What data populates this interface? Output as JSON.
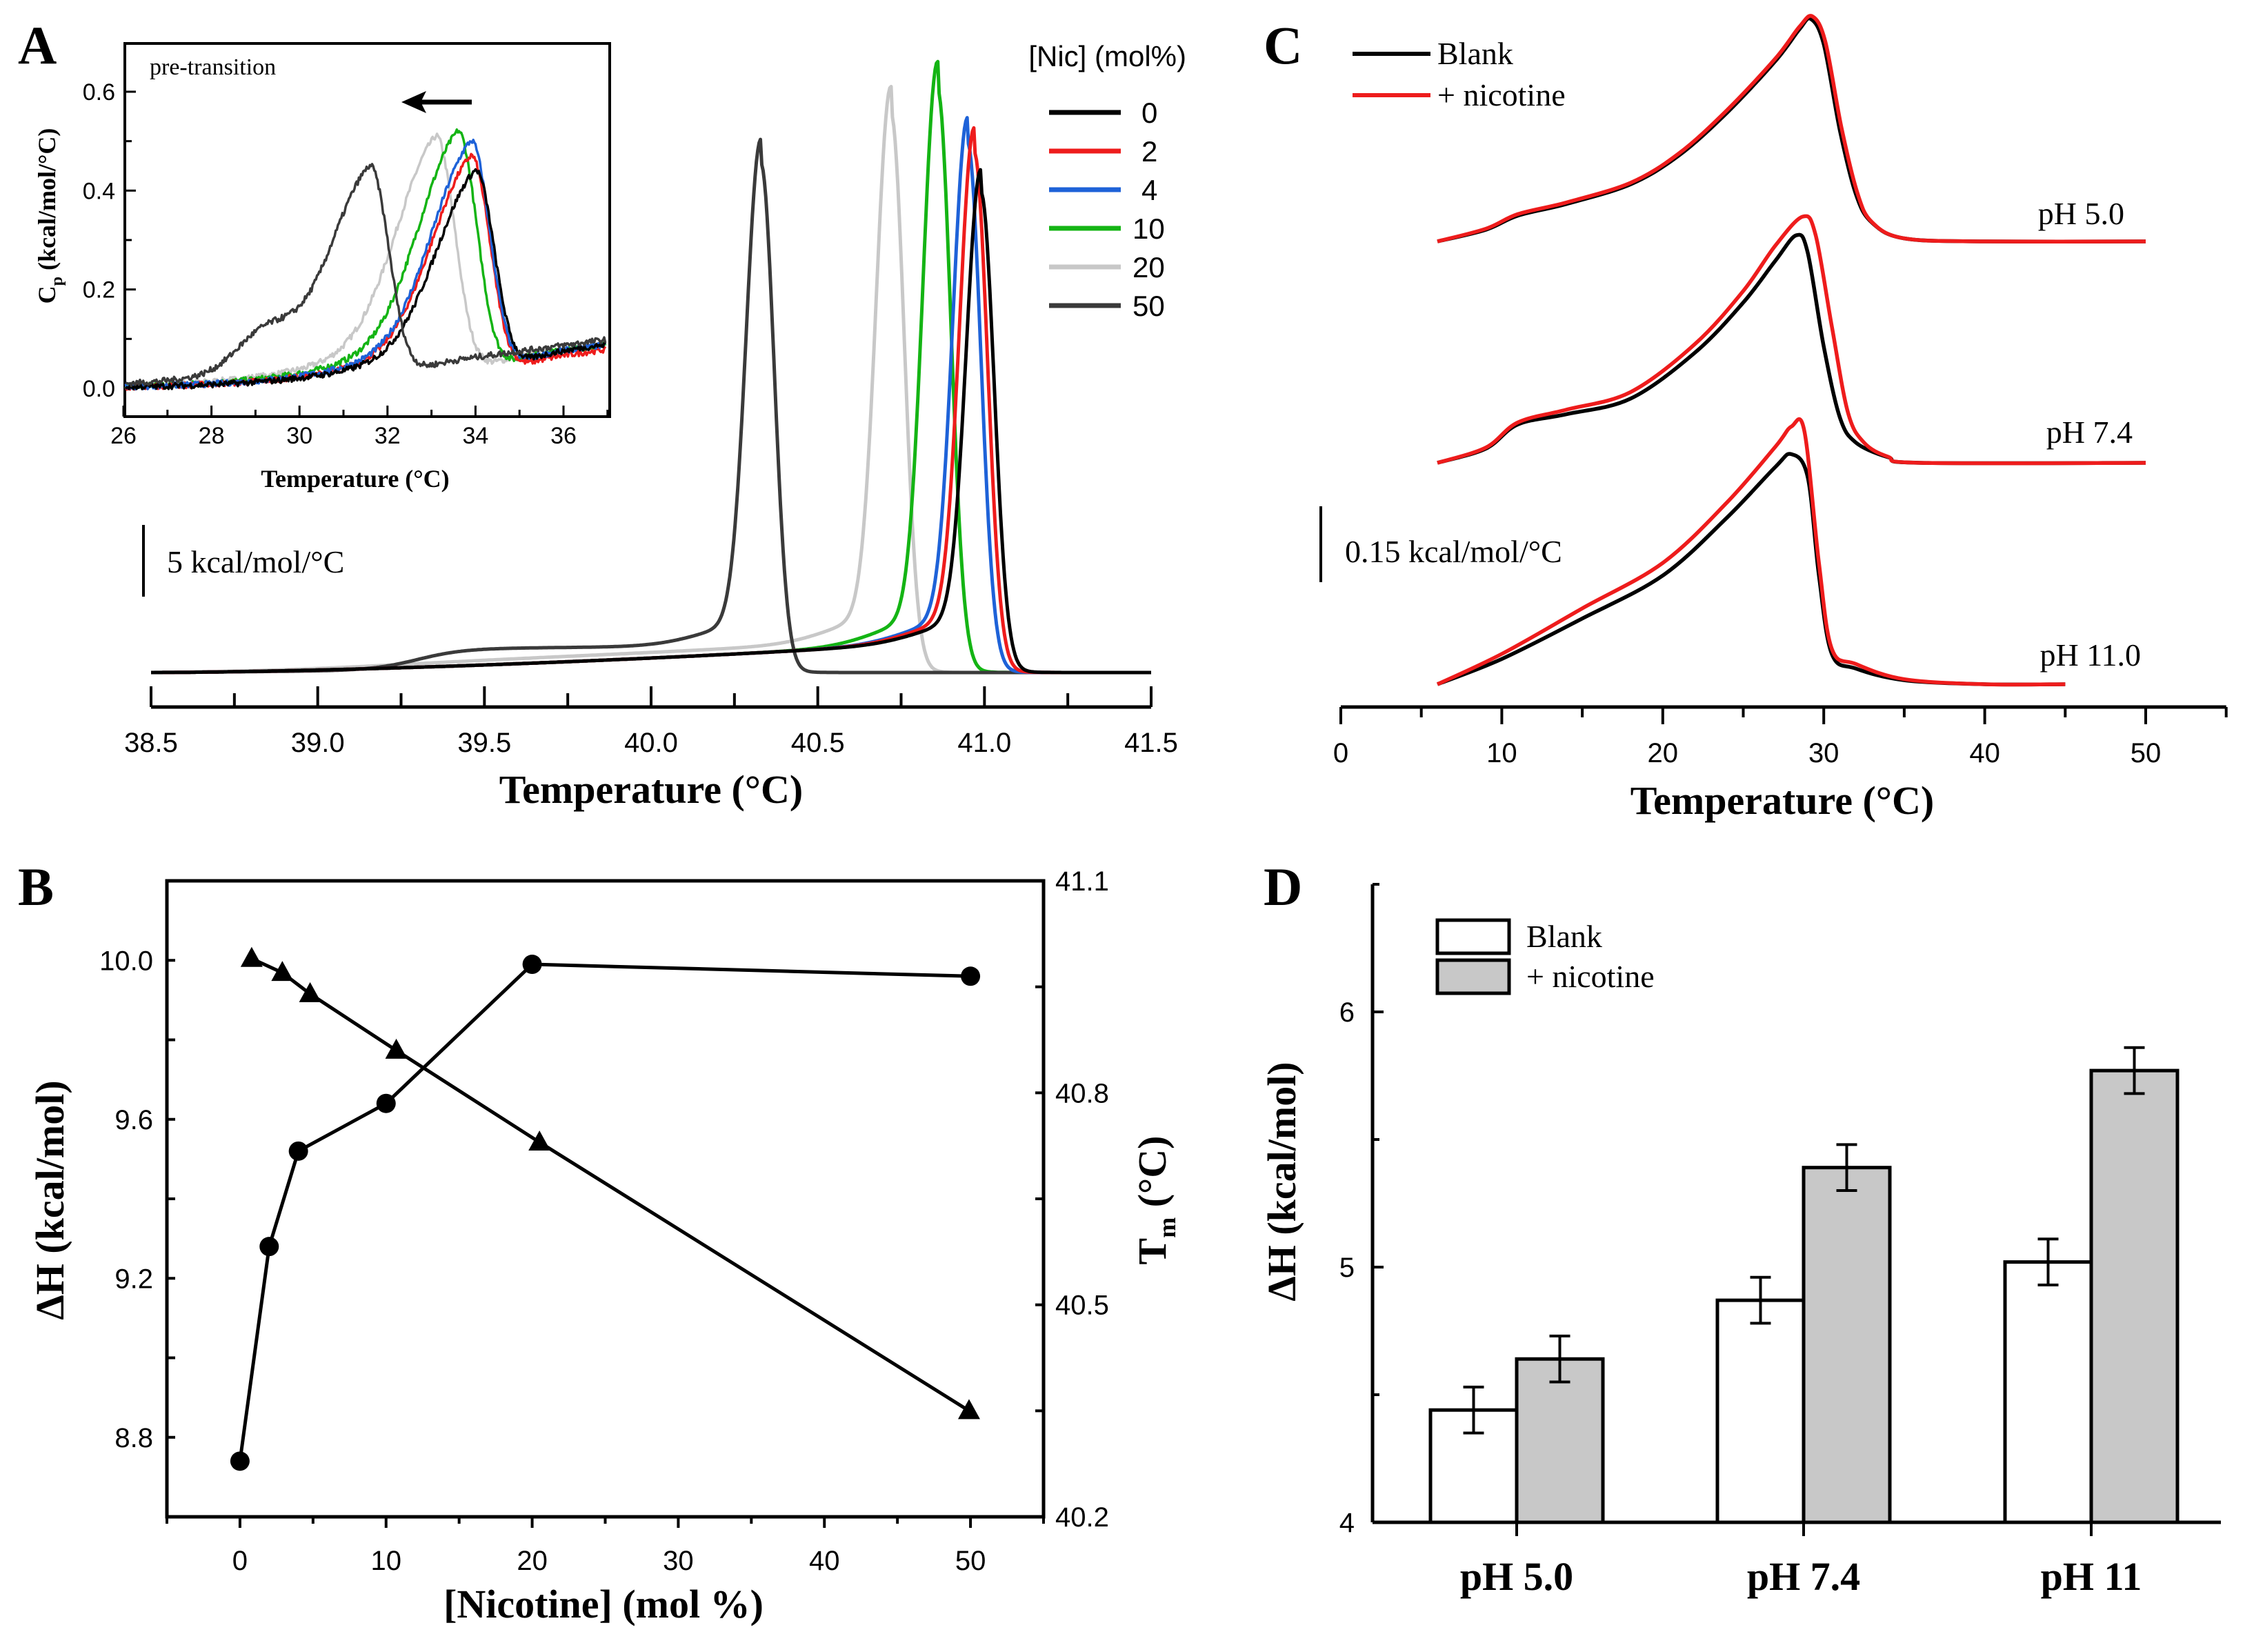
{
  "panels": {
    "a": "A",
    "b": "B",
    "c": "C",
    "d": "D"
  },
  "chart_data": [
    {
      "type": "line",
      "xlabel": "Temperature (°C)",
      "xlim": [
        38.5,
        41.5
      ],
      "xticks": [
        "38.5",
        "39.0",
        "39.5",
        "40.0",
        "40.5",
        "41.0",
        "41.5"
      ],
      "ylabel": "",
      "scale_bar": "5 kcal/mol/°C",
      "scale_bar_value": 5,
      "legend_title": "[Nic] (mol%)",
      "legend_placement": "top-right",
      "series": [
        {
          "name": "0",
          "color": "#000000",
          "peak_temp": 40.99,
          "peak_cp": 31.8
        },
        {
          "name": "2",
          "color": "#ee1c1c",
          "peak_temp": 40.97,
          "peak_cp": 34.6
        },
        {
          "name": "4",
          "color": "#1e62d8",
          "peak_temp": 40.95,
          "peak_cp": 35.3
        },
        {
          "name": "10",
          "color": "#14b414",
          "peak_temp": 40.86,
          "peak_cp": 39.1
        },
        {
          "name": "20",
          "color": "#c8c8c8",
          "peak_temp": 40.72,
          "peak_cp": 37.3
        },
        {
          "name": "50",
          "color": "#3a3a3a",
          "peak_temp": 40.33,
          "peak_cp": 34.1
        }
      ]
    },
    {
      "type": "line",
      "title": "pre-transition",
      "xlabel": "Temperature (°C)",
      "ylabel_main": "C",
      "ylabel_sub": "p",
      "ylabel_rest": " (kcal/mol/°C)",
      "xlim": [
        26,
        37
      ],
      "ylim": [
        -0.05,
        0.7
      ],
      "xticks": [
        "26",
        "28",
        "30",
        "32",
        "34",
        "36"
      ],
      "yticks": [
        "0.0",
        "0.2",
        "0.4",
        "0.6"
      ],
      "arrow_direction": "left",
      "series": [
        {
          "name": "0",
          "color": "#000000",
          "peak_temp": 34.0,
          "peak_cp": 0.44
        },
        {
          "name": "2",
          "color": "#ee1c1c",
          "peak_temp": 33.9,
          "peak_cp": 0.47
        },
        {
          "name": "4",
          "color": "#1e62d8",
          "peak_temp": 33.9,
          "peak_cp": 0.5
        },
        {
          "name": "10",
          "color": "#14b414",
          "peak_temp": 33.6,
          "peak_cp": 0.52
        },
        {
          "name": "20",
          "color": "#c8c8c8",
          "peak_temp": 33.1,
          "peak_cp": 0.51
        },
        {
          "name": "50",
          "color": "#3a3a3a",
          "peak_temp": 31.6,
          "peak_cp": 0.45
        }
      ]
    },
    {
      "type": "line",
      "xlabel": "Temperature (°C)",
      "xlim": [
        0,
        55
      ],
      "xticks": [
        "0",
        "10",
        "20",
        "30",
        "40",
        "50"
      ],
      "scale_bar": "0.15 kcal/mol/°C",
      "scale_bar_value": 0.15,
      "legend": [
        {
          "name": "Blank",
          "color": "#000000"
        },
        {
          "name": "+ nicotine",
          "color": "#ee1c1c"
        }
      ],
      "legend_placement": "top-left",
      "groups": [
        {
          "label": "pH 5.0",
          "blank": {
            "T": [
              6,
              9,
              11,
              14,
              18,
              21,
              24,
              27,
              28.5,
              29.2,
              30,
              31,
              32,
              33,
              35,
              40,
              50
            ],
            "cp": [
              0,
              0.023,
              0.051,
              0.074,
              0.113,
              0.17,
              0.255,
              0.357,
              0.42,
              0.44,
              0.39,
              0.22,
              0.093,
              0.037,
              0.006,
              0,
              0
            ]
          },
          "nicotine": {
            "T": [
              6,
              9,
              11,
              14,
              18,
              21,
              24,
              27,
              28.5,
              29.3,
              30.1,
              31.1,
              32.1,
              33,
              35,
              40,
              50
            ],
            "cp": [
              0,
              0.025,
              0.054,
              0.077,
              0.116,
              0.174,
              0.26,
              0.362,
              0.425,
              0.445,
              0.395,
              0.225,
              0.095,
              0.038,
              0.006,
              0,
              0
            ]
          }
        },
        {
          "label": "pH 7.4",
          "blank": {
            "T": [
              6,
              9,
              11,
              14,
              18,
              22,
              25,
              27,
              28.3,
              29,
              30,
              31,
              32,
              34,
              36,
              50
            ],
            "cp": [
              0,
              0.028,
              0.076,
              0.096,
              0.127,
              0.218,
              0.317,
              0.4,
              0.45,
              0.416,
              0.23,
              0.09,
              0.04,
              0.011,
              0,
              0
            ]
          },
          "nicotine": {
            "T": [
              6,
              9,
              11,
              14,
              18,
              22,
              25,
              27,
              28.7,
              29.5,
              30.5,
              31.5,
              32.5,
              34,
              36,
              50
            ],
            "cp": [
              0,
              0.03,
              0.08,
              0.105,
              0.14,
              0.235,
              0.34,
              0.43,
              0.487,
              0.45,
              0.27,
              0.1,
              0.04,
              0.012,
              0,
              0
            ]
          }
        },
        {
          "label": "pH 11.0",
          "blank": {
            "T": [
              6,
              10,
              15,
              20,
              24,
              27,
              28,
              29,
              29.7,
              30.5,
              32,
              35,
              40,
              45
            ],
            "cp": [
              0,
              0.05,
              0.13,
              0.215,
              0.33,
              0.43,
              0.455,
              0.41,
              0.215,
              0.06,
              0.031,
              0.008,
              0,
              0
            ]
          },
          "nicotine": {
            "T": [
              6,
              10,
              15,
              20,
              24,
              27,
              28,
              28.8,
              29.7,
              30.5,
              32,
              35,
              40,
              45
            ],
            "cp": [
              0,
              0.06,
              0.15,
              0.24,
              0.36,
              0.47,
              0.51,
              0.5,
              0.24,
              0.07,
              0.04,
              0.01,
              0,
              0
            ]
          }
        }
      ]
    },
    {
      "type": "scatter",
      "xlabel": "[Nicotine] (mol %)",
      "ylabel": "ΔH (kcal/mol)",
      "y2label_main": "T",
      "y2label_sub": "m",
      "y2label_rest": " (°C)",
      "xlim": [
        -5,
        55
      ],
      "ylim": [
        8.6,
        10.2
      ],
      "y2lim": [
        40.2,
        41.1
      ],
      "xticks": [
        "0",
        "10",
        "20",
        "30",
        "40",
        "50"
      ],
      "yticks": [
        "8.8",
        "9.2",
        "9.6",
        "10.0"
      ],
      "y2ticks": [
        "40.2",
        "40.5",
        "40.8",
        "41.1"
      ],
      "series": [
        {
          "marker": "circle",
          "axis": "left",
          "x": [
            0,
            2,
            4,
            10,
            20,
            50
          ],
          "y": [
            8.74,
            9.28,
            9.52,
            9.64,
            9.99,
            9.96
          ]
        },
        {
          "marker": "triangle",
          "axis": "right",
          "x": [
            0.8,
            2.9,
            4.8,
            10.7,
            20.5,
            49.9
          ],
          "y": [
            40.99,
            40.97,
            40.94,
            40.86,
            40.73,
            40.35
          ]
        }
      ]
    },
    {
      "type": "bar",
      "ylabel": "ΔH (kcal/mol)",
      "ylim": [
        4,
        6.5
      ],
      "yticks": [
        "4",
        "5",
        "6"
      ],
      "categories": [
        "pH 5.0",
        "pH 7.4",
        "pH 11"
      ],
      "legend_placement": "top-left",
      "series": [
        {
          "name": "Blank",
          "color": "#ffffff",
          "values": [
            4.44,
            4.87,
            5.02
          ],
          "errors": [
            0.09,
            0.09,
            0.09
          ]
        },
        {
          "name": "+ nicotine",
          "color": "#c8c8c8",
          "values": [
            4.64,
            5.39,
            5.77
          ],
          "errors": [
            0.09,
            0.09,
            0.09
          ]
        }
      ]
    }
  ]
}
